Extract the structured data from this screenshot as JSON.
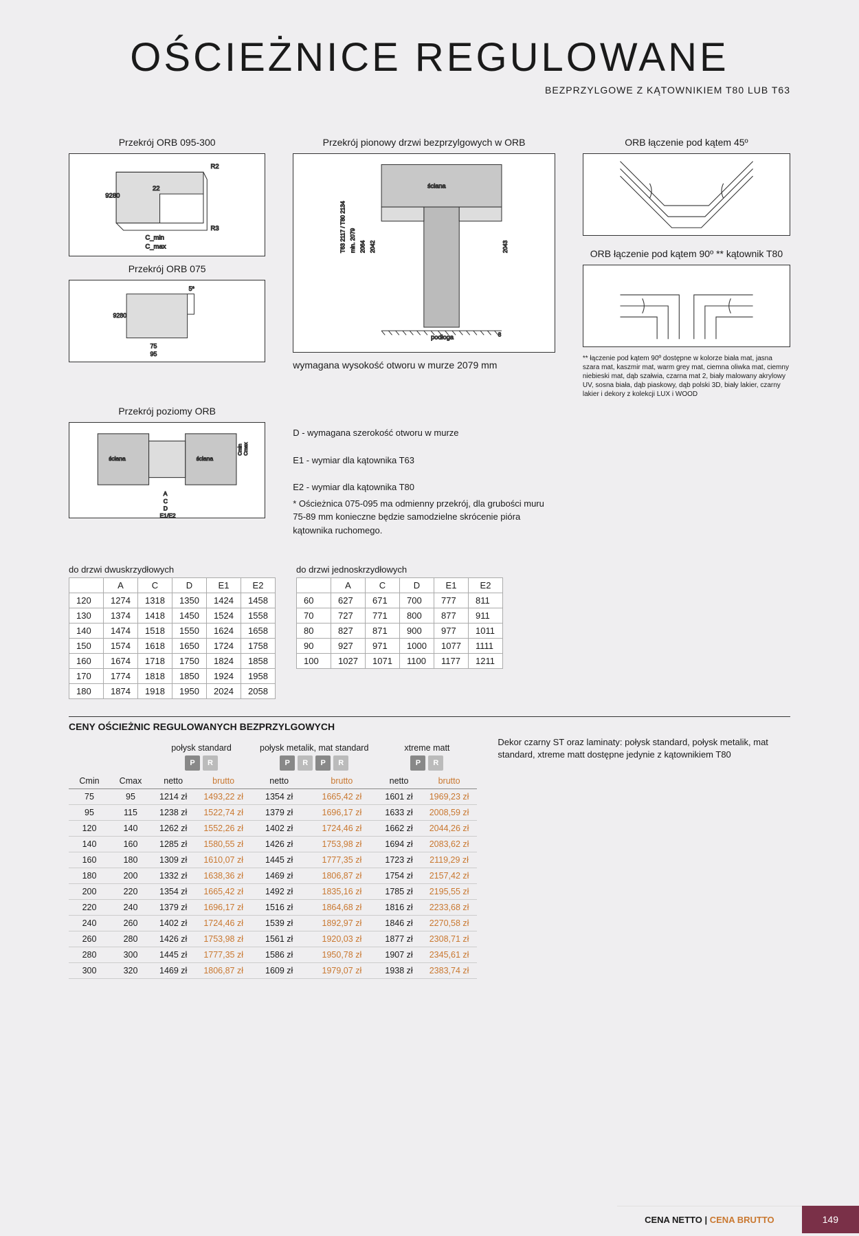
{
  "title": "OŚCIEŻNICE REGULOWANE",
  "subtitle": "BEZPRZYLGOWE Z KĄTOWNIKIEM T80 LUB T63",
  "diagrams": {
    "orb095": {
      "label": "Przekrój ORB 095-300",
      "dims": [
        "92",
        "80",
        "22",
        "R2",
        "R3",
        "C_min",
        "C_max"
      ]
    },
    "orb075": {
      "label": "Przekrój ORB 075",
      "dims": [
        "5*",
        "92",
        "80",
        "75",
        "95"
      ]
    },
    "vert": {
      "label": "Przekrój pionowy drzwi bezprzylgowych w ORB",
      "dims": [
        "T63 2117 / T80 2134",
        "min. 2079",
        "2064",
        "2042",
        "2043",
        "8"
      ],
      "labels": [
        "ściana",
        "podłoga"
      ],
      "note": "wymagana wysokość otworu w murze 2079 mm"
    },
    "horiz": {
      "label": "Przekrój poziomy ORB",
      "dims": [
        "A",
        "C",
        "D",
        "E1/E2",
        "Cmin",
        "Cmax"
      ],
      "labels": [
        "ściana",
        "ściana"
      ]
    },
    "join45": {
      "label": "ORB łączenie pod kątem 45º"
    },
    "join90": {
      "label": "ORB łączenie pod kątem 90º ** kątownik T80"
    },
    "join90_footnote": "** łączenie pod kątem 90º dostępne w kolorze biała mat, jasna szara mat, kaszmir mat, warm grey mat, ciemna oliwka mat, ciemny niebieski mat, dąb szałwia, czarna mat 2, biały malowany akrylowy UV, sosna biała, dąb piaskowy, dąb polski 3D, biały lakier, czarny lakier i dekory z kolekcji LUX i WOOD"
  },
  "legend": {
    "d": "D - wymagana szerokość otworu w murze",
    "e1": "E1 - wymiar dla kątownika T63",
    "e2": "E2 - wymiar dla kątownika T80",
    "star": "* Ościeżnica 075-095 ma odmienny przekrój, dla grubości muru 75-89 mm konieczne będzie samodzielne skrócenie pióra kątownika ruchomego."
  },
  "dim_headers": [
    "A",
    "C",
    "D",
    "E1",
    "E2"
  ],
  "table_double": {
    "caption": "do drzwi dwuskrzydłowych",
    "rows": [
      [
        "120",
        "1274",
        "1318",
        "1350",
        "1424",
        "1458"
      ],
      [
        "130",
        "1374",
        "1418",
        "1450",
        "1524",
        "1558"
      ],
      [
        "140",
        "1474",
        "1518",
        "1550",
        "1624",
        "1658"
      ],
      [
        "150",
        "1574",
        "1618",
        "1650",
        "1724",
        "1758"
      ],
      [
        "160",
        "1674",
        "1718",
        "1750",
        "1824",
        "1858"
      ],
      [
        "170",
        "1774",
        "1818",
        "1850",
        "1924",
        "1958"
      ],
      [
        "180",
        "1874",
        "1918",
        "1950",
        "2024",
        "2058"
      ]
    ]
  },
  "table_single": {
    "caption": "do drzwi jednoskrzydłowych",
    "rows": [
      [
        "60",
        "627",
        "671",
        "700",
        "777",
        "811"
      ],
      [
        "70",
        "727",
        "771",
        "800",
        "877",
        "911"
      ],
      [
        "80",
        "827",
        "871",
        "900",
        "977",
        "1011"
      ],
      [
        "90",
        "927",
        "971",
        "1000",
        "1077",
        "1111"
      ],
      [
        "100",
        "1027",
        "1071",
        "1100",
        "1177",
        "1211"
      ]
    ]
  },
  "price_title": "CENY OŚCIEŻNIC REGULOWANYCH BEZPRZYLGOWYCH",
  "price_note": "Dekor czarny ST  oraz laminaty: połysk standard, połysk metalik, mat standard, xtreme matt dostępne jedynie z kątownikiem T80",
  "price_groups": [
    {
      "name": "połysk standard",
      "badges": [
        "P",
        "R"
      ]
    },
    {
      "name": "połysk metalik, mat standard",
      "badges": [
        "P",
        "R",
        "P",
        "R"
      ]
    },
    {
      "name": "xtreme matt",
      "badges": [
        "P",
        "R"
      ]
    }
  ],
  "price_cols": {
    "cmin": "Cmin",
    "cmax": "Cmax",
    "netto": "netto",
    "brutto": "brutto"
  },
  "price_rows": [
    {
      "cmin": "75",
      "cmax": "95",
      "v": [
        [
          "1214 zł",
          "1493,22 zł"
        ],
        [
          "1354 zł",
          "1665,42 zł"
        ],
        [
          "1601 zł",
          "1969,23 zł"
        ]
      ]
    },
    {
      "cmin": "95",
      "cmax": "115",
      "v": [
        [
          "1238 zł",
          "1522,74 zł"
        ],
        [
          "1379 zł",
          "1696,17 zł"
        ],
        [
          "1633 zł",
          "2008,59 zł"
        ]
      ]
    },
    {
      "cmin": "120",
      "cmax": "140",
      "v": [
        [
          "1262 zł",
          "1552,26 zł"
        ],
        [
          "1402 zł",
          "1724,46 zł"
        ],
        [
          "1662 zł",
          "2044,26 zł"
        ]
      ]
    },
    {
      "cmin": "140",
      "cmax": "160",
      "v": [
        [
          "1285 zł",
          "1580,55 zł"
        ],
        [
          "1426 zł",
          "1753,98 zł"
        ],
        [
          "1694 zł",
          "2083,62 zł"
        ]
      ]
    },
    {
      "cmin": "160",
      "cmax": "180",
      "v": [
        [
          "1309 zł",
          "1610,07 zł"
        ],
        [
          "1445 zł",
          "1777,35 zł"
        ],
        [
          "1723 zł",
          "2119,29 zł"
        ]
      ]
    },
    {
      "cmin": "180",
      "cmax": "200",
      "v": [
        [
          "1332 zł",
          "1638,36 zł"
        ],
        [
          "1469 zł",
          "1806,87 zł"
        ],
        [
          "1754 zł",
          "2157,42 zł"
        ]
      ]
    },
    {
      "cmin": "200",
      "cmax": "220",
      "v": [
        [
          "1354 zł",
          "1665,42 zł"
        ],
        [
          "1492 zł",
          "1835,16 zł"
        ],
        [
          "1785 zł",
          "2195,55 zł"
        ]
      ]
    },
    {
      "cmin": "220",
      "cmax": "240",
      "v": [
        [
          "1379 zł",
          "1696,17 zł"
        ],
        [
          "1516 zł",
          "1864,68 zł"
        ],
        [
          "1816 zł",
          "2233,68 zł"
        ]
      ]
    },
    {
      "cmin": "240",
      "cmax": "260",
      "v": [
        [
          "1402 zł",
          "1724,46 zł"
        ],
        [
          "1539 zł",
          "1892,97 zł"
        ],
        [
          "1846 zł",
          "2270,58 zł"
        ]
      ]
    },
    {
      "cmin": "260",
      "cmax": "280",
      "v": [
        [
          "1426 zł",
          "1753,98 zł"
        ],
        [
          "1561 zł",
          "1920,03 zł"
        ],
        [
          "1877 zł",
          "2308,71 zł"
        ]
      ]
    },
    {
      "cmin": "280",
      "cmax": "300",
      "v": [
        [
          "1445 zł",
          "1777,35 zł"
        ],
        [
          "1586 zł",
          "1950,78 zł"
        ],
        [
          "1907 zł",
          "2345,61 zł"
        ]
      ]
    },
    {
      "cmin": "300",
      "cmax": "320",
      "v": [
        [
          "1469 zł",
          "1806,87 zł"
        ],
        [
          "1609 zł",
          "1979,07 zł"
        ],
        [
          "1938 zł",
          "2383,74 zł"
        ]
      ]
    }
  ],
  "footer": {
    "netto": "CENA NETTO",
    "sep": " | ",
    "brutto": "CENA BRUTTO",
    "page": "149"
  },
  "colors": {
    "brutto": "#c97830",
    "footer_bg": "#7a3048"
  }
}
